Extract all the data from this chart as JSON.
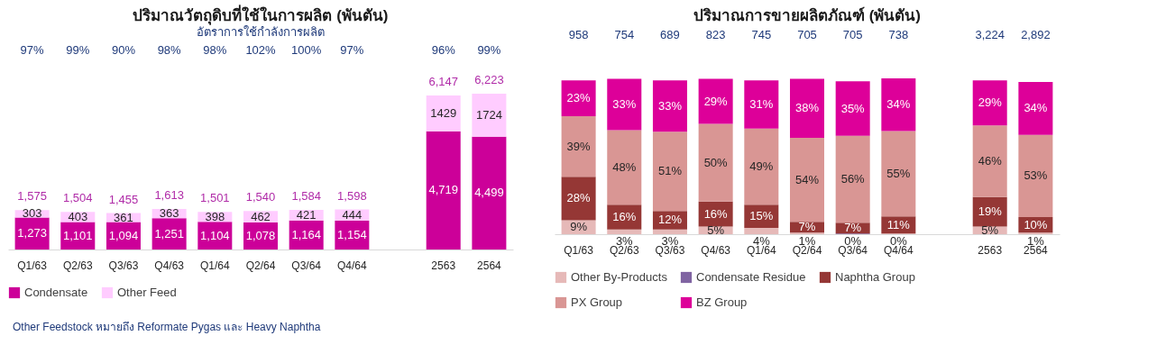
{
  "chart_data": [
    {
      "type": "bar",
      "stacked": true,
      "title": "ปริมาณวัตถุดิบที่ใช้ในการผลิต (พันตัน)",
      "subtitle": "อัตราการใช้กำลังการผลิต",
      "tick_labels": "x",
      "legend": "bottom",
      "categories": [
        "Q1/63",
        "Q2/63",
        "Q3/63",
        "Q4/63",
        "Q1/64",
        "Q2/64",
        "Q3/64",
        "Q4/64",
        null,
        "2563",
        "2564"
      ],
      "series": [
        {
          "name": "Condensate",
          "color": "#cc0099",
          "values": [
            1273,
            1101,
            1094,
            1251,
            1104,
            1078,
            1164,
            1154,
            null,
            4719,
            4499
          ],
          "value_labels": [
            "1,273",
            "1,101",
            "1,094",
            "1,251",
            "1,104",
            "1,078",
            "1,164",
            "1,154",
            null,
            "4,719",
            "4,499"
          ]
        },
        {
          "name": "Other Feed",
          "color": "#ffccff",
          "values": [
            303,
            403,
            361,
            363,
            398,
            462,
            421,
            444,
            null,
            1429,
            1724
          ],
          "value_labels": [
            "303",
            "403",
            "361",
            "363",
            "398",
            "462",
            "421",
            "444",
            null,
            "1429",
            "1724"
          ]
        }
      ],
      "totals": [
        "1,575",
        "1,504",
        "1,455",
        "1,613",
        "1,501",
        "1,540",
        "1,584",
        "1,598",
        null,
        "6,147",
        "6,223"
      ],
      "annotations": [
        "97%",
        "99%",
        "90%",
        "98%",
        "98%",
        "102%",
        "100%",
        "97%",
        "96%",
        "99%",
        "Other Feedstock หมายถึง Reformate Pygas และ Heavy Naphtha"
      ]
    },
    {
      "type": "bar",
      "stacked": true,
      "title": "ปริมาณการขายผลิตภัณฑ์ (พันตัน)",
      "tick_labels": "x",
      "legend": "bottom",
      "categories": [
        "Q1/63",
        "Q2/63",
        "Q3/63",
        "Q4/63",
        "Q1/64",
        "Q2/64",
        "Q3/64",
        "Q4/64",
        null,
        "2563",
        "2564"
      ],
      "series": [
        {
          "name": "Other By-Products",
          "color": "#e6b9b8",
          "values": [
            9,
            3,
            3,
            5,
            4,
            1,
            null,
            0.4,
            null,
            5,
            1
          ],
          "value_labels": [
            "9%",
            "3%",
            "3%",
            "5%",
            "4%",
            "1%",
            null,
            "0%",
            null,
            "5%",
            "1%"
          ]
        },
        {
          "name": "Condensate Residue",
          "color": "#8064a2",
          "values": [
            null,
            null,
            null,
            null,
            null,
            null,
            0.4,
            null,
            null,
            null,
            null
          ],
          "value_labels": [
            null,
            null,
            null,
            null,
            null,
            null,
            "0%",
            null,
            null,
            null,
            null
          ]
        },
        {
          "name": "Naphtha Group",
          "color": "#953735",
          "values": [
            28,
            16,
            12,
            16,
            15,
            7,
            7,
            11,
            null,
            19,
            10
          ],
          "value_labels": [
            "28%",
            "16%",
            "12%",
            "16%",
            "15%",
            "7%",
            "7%",
            "11%",
            null,
            "19%",
            "10%"
          ]
        },
        {
          "name": "PX Group",
          "color": "#d99694",
          "values": [
            39,
            48,
            51,
            50,
            49,
            54,
            56,
            55,
            null,
            46,
            53
          ],
          "value_labels": [
            "39%",
            "48%",
            "51%",
            "50%",
            "49%",
            "54%",
            "56%",
            "55%",
            null,
            "46%",
            "53%"
          ]
        },
        {
          "name": "BZ Group",
          "color": "#dd0099",
          "values": [
            23,
            33,
            33,
            29,
            31,
            38,
            35,
            34,
            null,
            29,
            34
          ],
          "value_labels": [
            "23%",
            "33%",
            "33%",
            "29%",
            "31%",
            "38%",
            "35%",
            "34%",
            null,
            "29%",
            "34%"
          ]
        }
      ],
      "annotations": [
        "958",
        "754",
        "689",
        "823",
        "745",
        "705",
        "705",
        "738",
        "3,224",
        "2,892"
      ]
    }
  ]
}
